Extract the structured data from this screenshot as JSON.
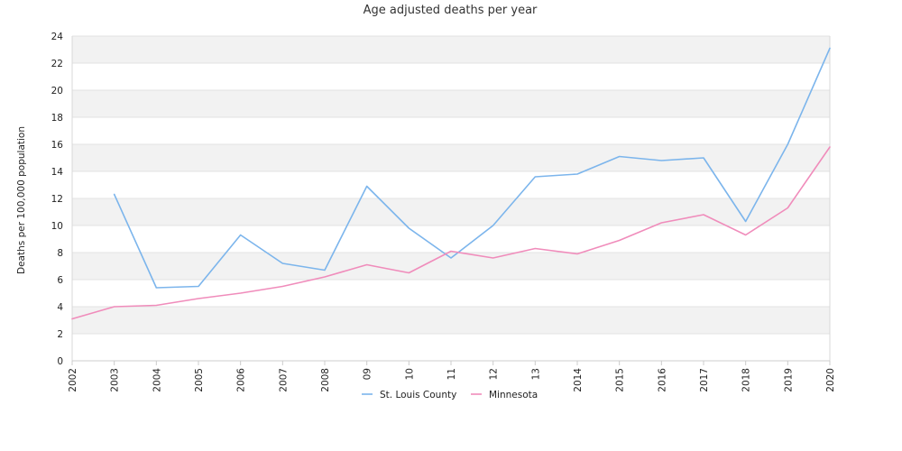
{
  "chart_data": {
    "type": "line",
    "title": "Age adjusted deaths per year",
    "xlabel": "",
    "ylabel": "Deaths per 100,000 population",
    "categories": [
      "2002",
      "2003",
      "2004",
      "2005",
      "2006",
      "2007",
      "2008",
      "09",
      "10",
      "11",
      "12",
      "13",
      "2014",
      "2015",
      "2016",
      "2017",
      "2018",
      "2019",
      "2020"
    ],
    "ylim": [
      0,
      24
    ],
    "yticks": [
      0,
      2,
      4,
      6,
      8,
      10,
      12,
      14,
      16,
      18,
      20,
      22,
      24
    ],
    "grid": "horizontal alternating bands",
    "legend": "bottom-center",
    "series": [
      {
        "name": "St. Louis County",
        "color": "#7cb5ec",
        "values": [
          null,
          12.3,
          5.4,
          5.5,
          9.3,
          7.2,
          6.7,
          12.9,
          9.8,
          7.6,
          10.0,
          13.6,
          13.8,
          15.1,
          14.8,
          15.0,
          10.3,
          16.0,
          23.1
        ]
      },
      {
        "name": "Minnesota",
        "color": "#f08cbb",
        "values": [
          3.1,
          4.0,
          4.1,
          4.6,
          5.0,
          5.5,
          6.2,
          7.1,
          6.5,
          8.1,
          7.6,
          8.3,
          7.9,
          8.9,
          10.2,
          10.8,
          9.3,
          11.3,
          15.8
        ]
      }
    ]
  }
}
